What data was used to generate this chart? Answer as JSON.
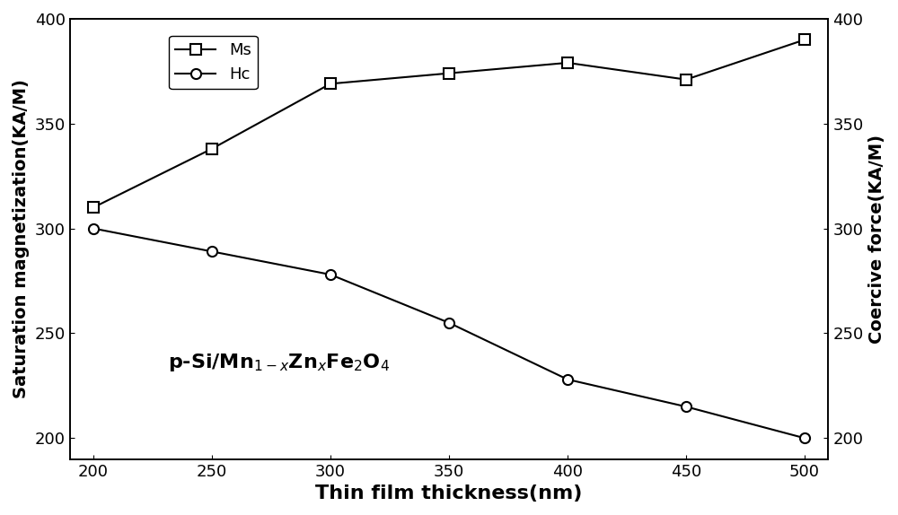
{
  "x": [
    200,
    250,
    300,
    350,
    400,
    450,
    500
  ],
  "Ms": [
    310,
    338,
    369,
    374,
    379,
    371,
    390
  ],
  "Hc": [
    300,
    289,
    278,
    255,
    228,
    215,
    200
  ],
  "xlabel": "Thin film thickness(nm)",
  "ylabel_left": "Saturation magnetization(KA/M)",
  "ylabel_right": "Coercive force(KA/M)",
  "ylim_left": [
    190,
    400
  ],
  "ylim_right": [
    190,
    400
  ],
  "yticks": [
    200,
    250,
    300,
    350,
    400
  ],
  "xticks": [
    200,
    250,
    300,
    350,
    400,
    450,
    500
  ],
  "legend_Ms": "Ms",
  "legend_Hc": "Hc",
  "annotation": "p-Si/Mn$_{1-x}$Zn$_x$Fe$_2$O$_4$",
  "line_color": "#000000",
  "bg_color": "#ffffff",
  "marker_Ms": "s",
  "marker_Hc": "o",
  "marker_size": 8,
  "linewidth": 1.5,
  "xlabel_fontsize": 16,
  "ylabel_fontsize": 14,
  "tick_fontsize": 13,
  "legend_fontsize": 13,
  "annotation_fontsize": 16
}
